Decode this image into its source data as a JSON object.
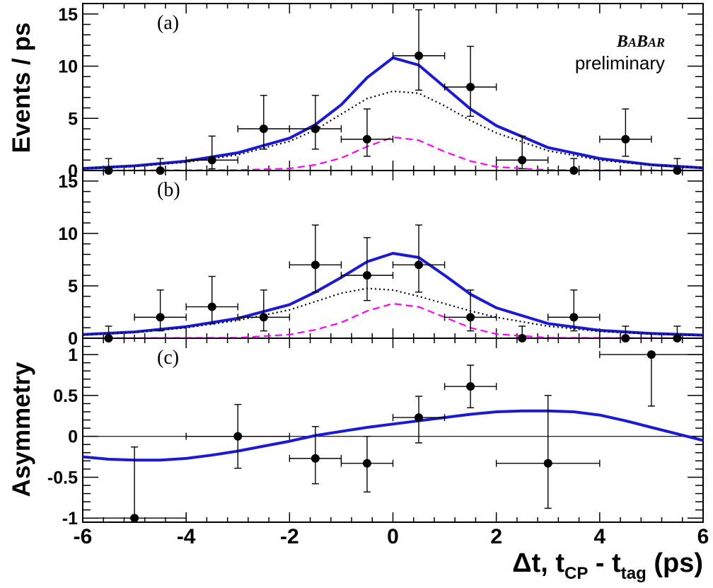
{
  "figure": {
    "experiment_logo": {
      "b1": "B",
      "a1": "A",
      "b2": "B",
      "a2": "A",
      "r": "R"
    },
    "preliminary": "preliminary",
    "xlabel": {
      "delta_t": "Δt, t",
      "cp": "CP",
      "minus": " - t",
      "tag": "tag",
      "unit": " (ps)"
    }
  },
  "colors": {
    "total_fit": "#1a1ad6",
    "signal_dotted": "#000000",
    "background_dashed": "#ff00ff",
    "points": "#000000"
  },
  "chart_data": [
    {
      "type": "scatter",
      "panel": "(a)",
      "ylabel": "Events / ps",
      "xlim": [
        -6,
        6
      ],
      "ylim": [
        0,
        16
      ],
      "x_ticks": [
        -6,
        -4,
        -2,
        0,
        2,
        4,
        6
      ],
      "y_ticks": [
        0,
        5,
        10,
        15
      ],
      "series": [
        {
          "kind": "points",
          "x": [
            -5.5,
            -4.5,
            -3.5,
            -2.5,
            -1.5,
            -0.5,
            0.5,
            1.5,
            2.5,
            3.5,
            4.5,
            5.5
          ],
          "y": [
            0,
            0,
            1,
            4,
            4,
            3,
            11,
            8,
            1,
            0,
            3,
            0
          ],
          "xerr": [
            0.5,
            0.5,
            0.5,
            0.5,
            0.5,
            0.5,
            0.5,
            0.5,
            0.5,
            0.5,
            0.5,
            0.5
          ],
          "yerr_up": [
            1.15,
            1.15,
            2.3,
            3.2,
            3.2,
            2.9,
            4.4,
            3.9,
            2.3,
            1.15,
            2.9,
            1.15
          ],
          "yerr_down": [
            0,
            0,
            0.83,
            1.95,
            1.95,
            1.63,
            3.3,
            2.8,
            0.83,
            0,
            1.63,
            0
          ]
        },
        {
          "kind": "solid",
          "x": [
            -6,
            -5,
            -4,
            -3,
            -2,
            -1.5,
            -1,
            -0.5,
            0,
            0.5,
            1,
            1.5,
            2,
            3,
            4,
            5,
            6
          ],
          "y": [
            0.2,
            0.45,
            0.9,
            1.7,
            3.1,
            4.4,
            6.3,
            8.9,
            10.8,
            10.1,
            8.0,
            5.9,
            4.3,
            2.2,
            1.15,
            0.55,
            0.25
          ]
        },
        {
          "kind": "dotted",
          "x": [
            -6,
            -5,
            -4,
            -3,
            -2,
            -1.5,
            -1,
            -0.5,
            0,
            0.5,
            1,
            1.5,
            2,
            3,
            4,
            5,
            6
          ],
          "y": [
            0.2,
            0.4,
            0.8,
            1.5,
            2.8,
            3.9,
            5.4,
            6.9,
            7.6,
            7.4,
            6.2,
            4.8,
            3.6,
            1.9,
            1.0,
            0.5,
            0.25
          ]
        },
        {
          "kind": "dashed",
          "x": [
            -6,
            -3,
            -2,
            -1.5,
            -1,
            -0.5,
            0,
            0.5,
            1,
            1.5,
            2,
            3,
            6
          ],
          "y": [
            0,
            0.05,
            0.2,
            0.55,
            1.2,
            2.3,
            3.2,
            2.9,
            1.8,
            0.9,
            0.35,
            0.05,
            0
          ]
        }
      ]
    },
    {
      "type": "scatter",
      "panel": "(b)",
      "ylabel": "",
      "xlim": [
        -6,
        6
      ],
      "ylim": [
        0,
        16
      ],
      "x_ticks": [
        -6,
        -4,
        -2,
        0,
        2,
        4,
        6
      ],
      "y_ticks": [
        0,
        5,
        10,
        15
      ],
      "series": [
        {
          "kind": "points",
          "x": [
            -5.5,
            -4.5,
            -3.5,
            -2.5,
            -1.5,
            -0.5,
            0.5,
            1.5,
            2.5,
            3.5,
            4.5,
            5.5
          ],
          "y": [
            0,
            2,
            3,
            2,
            7,
            6,
            7,
            2,
            0,
            2,
            0,
            0
          ],
          "xerr": [
            0.5,
            0.5,
            0.5,
            0.5,
            0.5,
            0.5,
            0.5,
            0.5,
            0.5,
            0.5,
            0.5,
            0.5
          ],
          "yerr_up": [
            1.15,
            2.6,
            2.9,
            2.6,
            3.8,
            3.6,
            3.8,
            2.6,
            1.15,
            2.6,
            1.15,
            1.15
          ],
          "yerr_down": [
            0,
            1.3,
            1.63,
            1.3,
            2.6,
            2.4,
            2.6,
            1.3,
            0,
            1.3,
            0,
            0
          ]
        },
        {
          "kind": "solid",
          "x": [
            -6,
            -5,
            -4,
            -3,
            -2,
            -1.5,
            -1,
            -0.5,
            0,
            0.5,
            1,
            1.5,
            2,
            3,
            4,
            5,
            6
          ],
          "y": [
            0.35,
            0.6,
            1.1,
            1.9,
            3.2,
            4.4,
            5.8,
            7.3,
            8.1,
            7.7,
            6.0,
            4.2,
            2.9,
            1.4,
            0.75,
            0.45,
            0.3
          ]
        },
        {
          "kind": "dotted",
          "x": [
            -6,
            -5,
            -4,
            -3,
            -2,
            -1.5,
            -1,
            -0.5,
            0,
            0.5,
            1,
            1.5,
            2,
            3,
            4,
            5,
            6
          ],
          "y": [
            0.3,
            0.55,
            1.0,
            1.7,
            2.7,
            3.5,
            4.3,
            4.75,
            4.6,
            4.0,
            3.3,
            2.6,
            2.0,
            1.15,
            0.65,
            0.4,
            0.25
          ]
        },
        {
          "kind": "dashed",
          "x": [
            -6,
            -3,
            -2,
            -1.5,
            -1,
            -0.5,
            0,
            0.5,
            1,
            1.5,
            2,
            3,
            6
          ],
          "y": [
            0,
            0.05,
            0.35,
            0.8,
            1.5,
            2.6,
            3.3,
            3.0,
            2.0,
            1.0,
            0.4,
            0.05,
            0
          ]
        }
      ]
    },
    {
      "type": "scatter",
      "panel": "(c)",
      "ylabel": "Asymmetry",
      "xlim": [
        -6,
        6
      ],
      "ylim": [
        -1.05,
        1.2
      ],
      "x_ticks": [
        -6,
        -4,
        -2,
        0,
        2,
        4,
        6
      ],
      "y_ticks": [
        -1,
        -0.5,
        0,
        0.5,
        1
      ],
      "y_tick_labels": [
        "-1",
        "-0.5",
        "0",
        "0.5",
        "1"
      ],
      "x_tick_labels": [
        "-6",
        "-4",
        "-2",
        "0",
        "2",
        "4",
        "6"
      ],
      "series": [
        {
          "kind": "points",
          "x": [
            -5,
            -3,
            -1.5,
            -0.5,
            0.5,
            1.5,
            3,
            5
          ],
          "y": [
            -1.0,
            0,
            -0.27,
            -0.33,
            0.23,
            0.61,
            -0.33,
            1.0
          ],
          "xerr": [
            1.0,
            1.0,
            0.5,
            0.5,
            0.5,
            0.5,
            1.0,
            1.0
          ],
          "yerr_up": [
            0.87,
            0.39,
            0.39,
            0.33,
            0.26,
            0.26,
            0.83,
            0.0
          ],
          "yerr_down": [
            0.0,
            0.39,
            0.31,
            0.35,
            0.31,
            0.26,
            0.55,
            0.63
          ]
        },
        {
          "kind": "solid",
          "x": [
            -6,
            -5.5,
            -5,
            -4.5,
            -4,
            -3.5,
            -3,
            -2.5,
            -2,
            -1.5,
            -1,
            -0.5,
            0,
            0.5,
            1,
            1.5,
            2,
            2.5,
            3,
            3.5,
            4,
            4.5,
            5,
            5.5,
            6
          ],
          "y": [
            -0.25,
            -0.28,
            -0.29,
            -0.29,
            -0.27,
            -0.23,
            -0.18,
            -0.12,
            -0.06,
            0.01,
            0.06,
            0.11,
            0.15,
            0.19,
            0.23,
            0.27,
            0.3,
            0.31,
            0.31,
            0.3,
            0.26,
            0.19,
            0.11,
            0.03,
            -0.05
          ]
        }
      ]
    }
  ]
}
